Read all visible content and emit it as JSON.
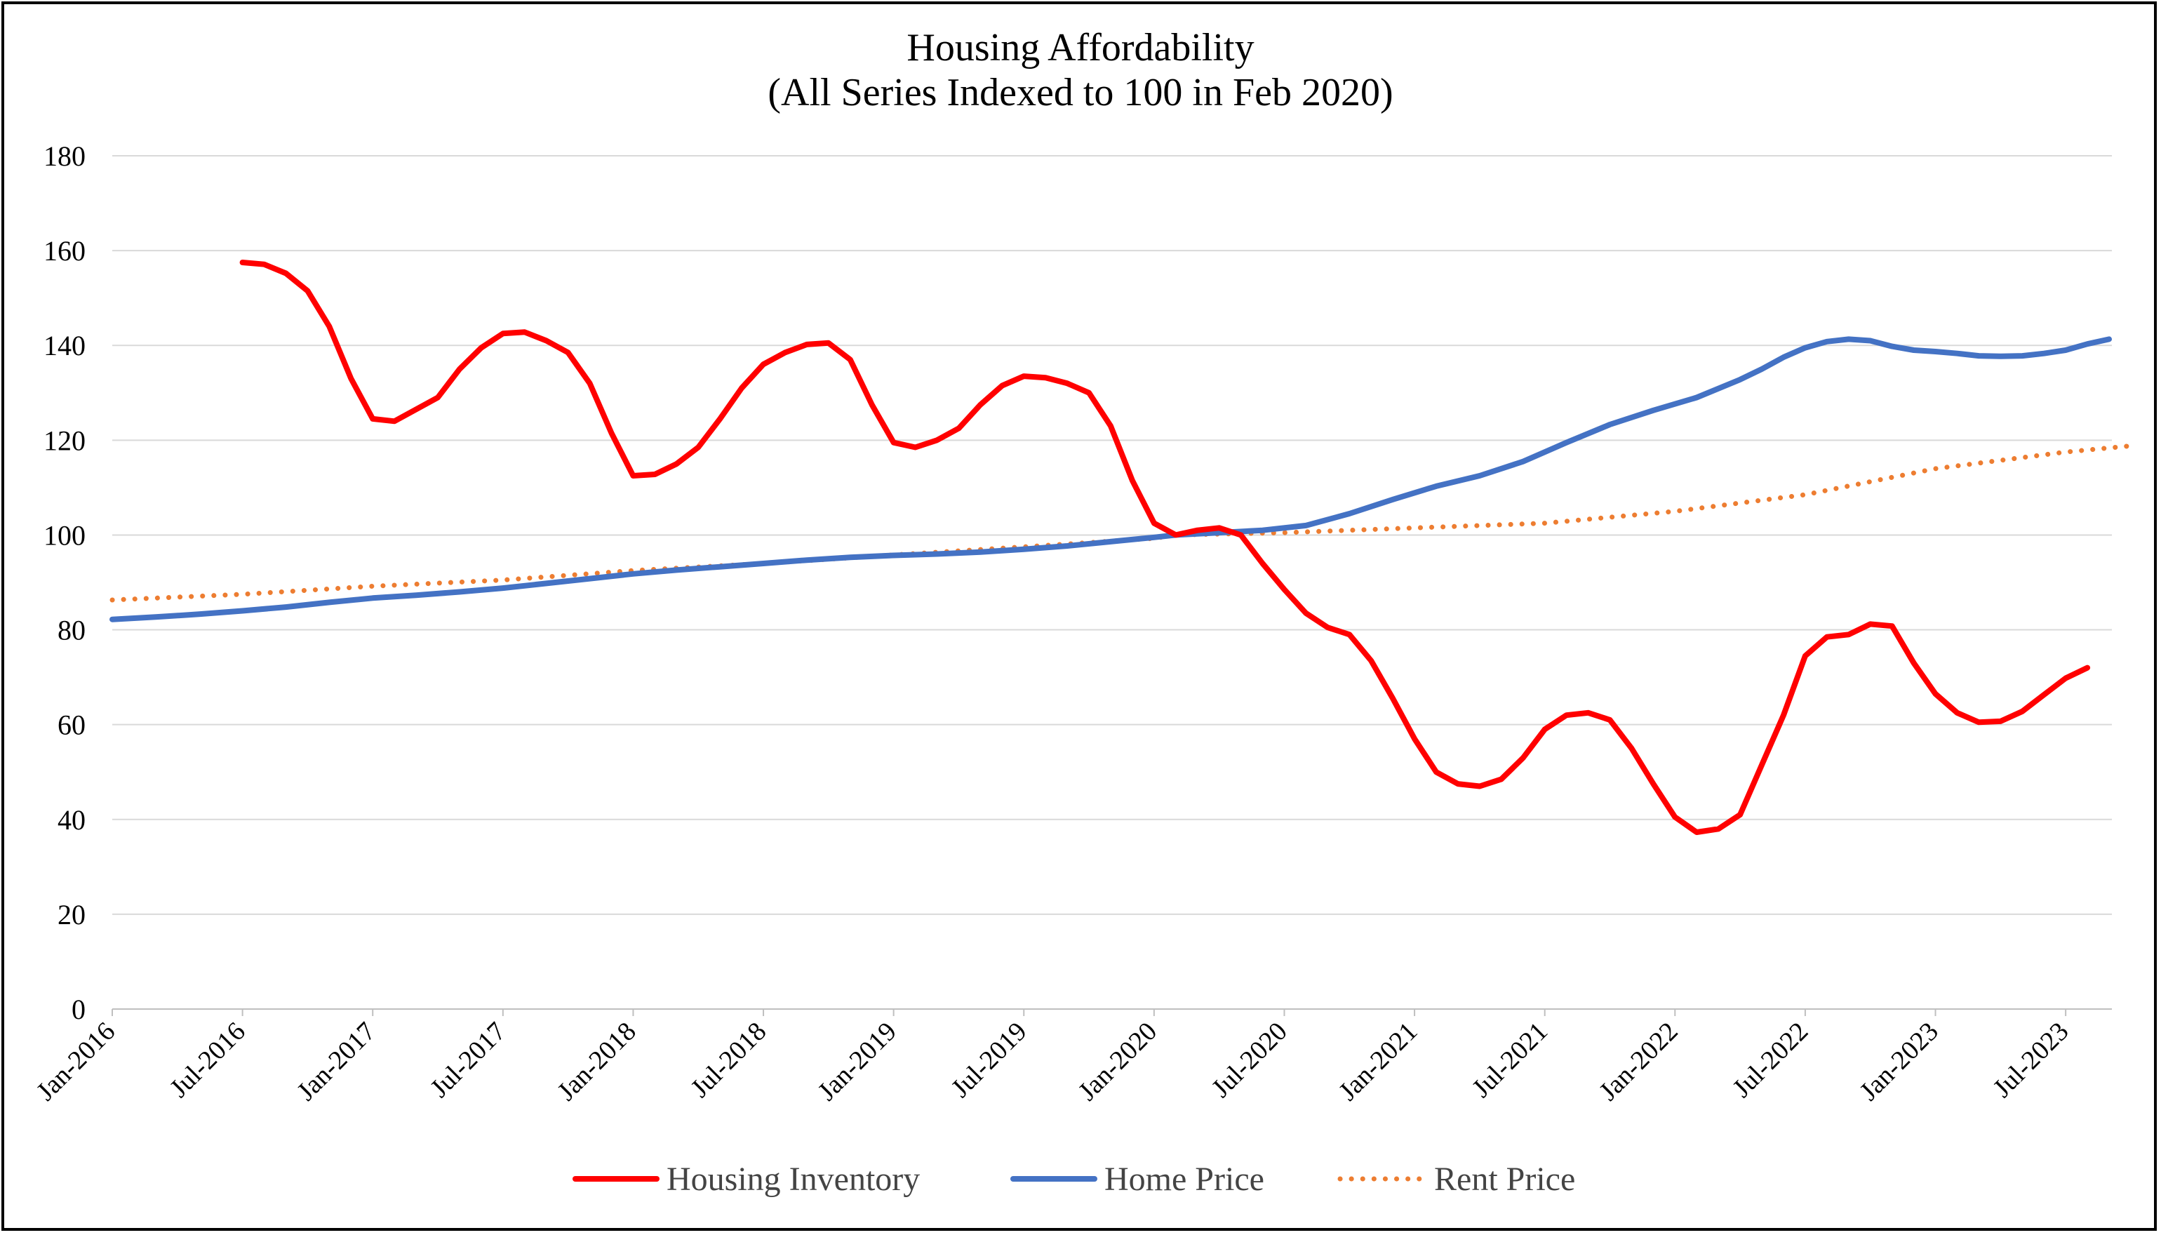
{
  "chart_data": {
    "type": "line",
    "title": "Housing Affordability",
    "subtitle": "(All Series Indexed to 100 in Feb 2020)",
    "xlabel": "",
    "ylabel": "",
    "ylim": [
      0,
      180
    ],
    "yticks": [
      0,
      20,
      40,
      60,
      80,
      100,
      120,
      140,
      160,
      180
    ],
    "x_range": [
      "2016-01",
      "2023-09"
    ],
    "xticks": [
      "Jan-2016",
      "Jul-2016",
      "Jan-2017",
      "Jul-2017",
      "Jan-2018",
      "Jul-2018",
      "Jan-2019",
      "Jul-2019",
      "Jan-2020",
      "Jul-2020",
      "Jan-2021",
      "Jul-2021",
      "Jan-2022",
      "Jul-2022",
      "Jan-2023",
      "Jul-2023"
    ],
    "grid": "horizontal",
    "legend_position": "bottom",
    "series": [
      {
        "name": "Housing Inventory",
        "color": "#ff0000",
        "style": "solid",
        "points": [
          [
            "2016-07",
            157.5
          ],
          [
            "2016-08",
            157.1
          ],
          [
            "2016-09",
            155.2
          ],
          [
            "2016-10",
            151.5
          ],
          [
            "2016-11",
            144.0
          ],
          [
            "2016-12",
            133.0
          ],
          [
            "2017-01",
            124.5
          ],
          [
            "2017-02",
            124.0
          ],
          [
            "2017-03",
            126.5
          ],
          [
            "2017-04",
            129.0
          ],
          [
            "2017-05",
            135.0
          ],
          [
            "2017-06",
            139.5
          ],
          [
            "2017-07",
            142.5
          ],
          [
            "2017-08",
            142.8
          ],
          [
            "2017-09",
            141.0
          ],
          [
            "2017-10",
            138.5
          ],
          [
            "2017-11",
            132.0
          ],
          [
            "2017-12",
            121.5
          ],
          [
            "2018-01",
            112.5
          ],
          [
            "2018-02",
            112.8
          ],
          [
            "2018-03",
            115.0
          ],
          [
            "2018-04",
            118.5
          ],
          [
            "2018-05",
            124.5
          ],
          [
            "2018-06",
            131.0
          ],
          [
            "2018-07",
            136.0
          ],
          [
            "2018-08",
            138.5
          ],
          [
            "2018-09",
            140.2
          ],
          [
            "2018-10",
            140.5
          ],
          [
            "2018-11",
            137.0
          ],
          [
            "2018-12",
            127.5
          ],
          [
            "2019-01",
            119.5
          ],
          [
            "2019-02",
            118.5
          ],
          [
            "2019-03",
            120.0
          ],
          [
            "2019-04",
            122.5
          ],
          [
            "2019-05",
            127.5
          ],
          [
            "2019-06",
            131.5
          ],
          [
            "2019-07",
            133.5
          ],
          [
            "2019-08",
            133.2
          ],
          [
            "2019-09",
            132.0
          ],
          [
            "2019-10",
            130.0
          ],
          [
            "2019-11",
            123.0
          ],
          [
            "2019-12",
            111.5
          ],
          [
            "2020-01",
            102.5
          ],
          [
            "2020-02",
            100.0
          ],
          [
            "2020-03",
            101.0
          ],
          [
            "2020-04",
            101.5
          ],
          [
            "2020-05",
            100.0
          ],
          [
            "2020-06",
            94.0
          ],
          [
            "2020-07",
            88.5
          ],
          [
            "2020-08",
            83.5
          ],
          [
            "2020-09",
            80.5
          ],
          [
            "2020-10",
            79.0
          ],
          [
            "2020-11",
            73.5
          ],
          [
            "2020-12",
            65.5
          ],
          [
            "2021-01",
            57.0
          ],
          [
            "2021-02",
            50.0
          ],
          [
            "2021-03",
            47.5
          ],
          [
            "2021-04",
            47.0
          ],
          [
            "2021-05",
            48.5
          ],
          [
            "2021-06",
            53.0
          ],
          [
            "2021-07",
            59.0
          ],
          [
            "2021-08",
            62.0
          ],
          [
            "2021-09",
            62.5
          ],
          [
            "2021-10",
            61.0
          ],
          [
            "2021-11",
            55.0
          ],
          [
            "2021-12",
            47.5
          ],
          [
            "2022-01",
            40.5
          ],
          [
            "2022-02",
            37.3
          ],
          [
            "2022-03",
            38.0
          ],
          [
            "2022-04",
            41.0
          ],
          [
            "2022-05",
            51.5
          ],
          [
            "2022-06",
            62.0
          ],
          [
            "2022-07",
            74.5
          ],
          [
            "2022-08",
            78.5
          ],
          [
            "2022-09",
            79.0
          ],
          [
            "2022-10",
            81.2
          ],
          [
            "2022-11",
            80.8
          ],
          [
            "2022-12",
            73.0
          ],
          [
            "2023-01",
            66.5
          ],
          [
            "2023-02",
            62.5
          ],
          [
            "2023-03",
            60.5
          ],
          [
            "2023-04",
            60.7
          ],
          [
            "2023-05",
            62.8
          ],
          [
            "2023-06",
            66.3
          ],
          [
            "2023-07",
            69.8
          ],
          [
            "2023-08",
            72.0
          ]
        ]
      },
      {
        "name": "Home Price",
        "color": "#4472c4",
        "style": "solid",
        "points": [
          [
            "2016-01",
            82.2
          ],
          [
            "2016-03",
            82.7
          ],
          [
            "2016-05",
            83.3
          ],
          [
            "2016-07",
            84.0
          ],
          [
            "2016-09",
            84.8
          ],
          [
            "2016-11",
            85.8
          ],
          [
            "2017-01",
            86.7
          ],
          [
            "2017-03",
            87.3
          ],
          [
            "2017-05",
            88.0
          ],
          [
            "2017-07",
            88.8
          ],
          [
            "2017-09",
            89.8
          ],
          [
            "2017-11",
            90.8
          ],
          [
            "2018-01",
            91.8
          ],
          [
            "2018-03",
            92.6
          ],
          [
            "2018-05",
            93.3
          ],
          [
            "2018-07",
            94.0
          ],
          [
            "2018-09",
            94.7
          ],
          [
            "2018-11",
            95.3
          ],
          [
            "2019-01",
            95.7
          ],
          [
            "2019-03",
            96.0
          ],
          [
            "2019-05",
            96.4
          ],
          [
            "2019-07",
            97.0
          ],
          [
            "2019-09",
            97.7
          ],
          [
            "2019-11",
            98.6
          ],
          [
            "2020-01",
            99.5
          ],
          [
            "2020-02",
            100.0
          ],
          [
            "2020-04",
            100.5
          ],
          [
            "2020-06",
            101.0
          ],
          [
            "2020-08",
            102.0
          ],
          [
            "2020-10",
            104.5
          ],
          [
            "2020-12",
            107.5
          ],
          [
            "2021-02",
            110.3
          ],
          [
            "2021-04",
            112.5
          ],
          [
            "2021-06",
            115.5
          ],
          [
            "2021-08",
            119.5
          ],
          [
            "2021-10",
            123.3
          ],
          [
            "2021-12",
            126.3
          ],
          [
            "2022-02",
            129.0
          ],
          [
            "2022-04",
            132.8
          ],
          [
            "2022-05",
            135.0
          ],
          [
            "2022-06",
            137.5
          ],
          [
            "2022-07",
            139.5
          ],
          [
            "2022-08",
            140.8
          ],
          [
            "2022-09",
            141.3
          ],
          [
            "2022-10",
            141.0
          ],
          [
            "2022-11",
            139.8
          ],
          [
            "2022-12",
            139.0
          ],
          [
            "2023-01",
            138.7
          ],
          [
            "2023-02",
            138.3
          ],
          [
            "2023-03",
            137.8
          ],
          [
            "2023-04",
            137.7
          ],
          [
            "2023-05",
            137.8
          ],
          [
            "2023-06",
            138.3
          ],
          [
            "2023-07",
            139.0
          ],
          [
            "2023-08",
            140.3
          ],
          [
            "2023-09",
            141.3
          ]
        ]
      },
      {
        "name": "Rent Price",
        "color": "#ed7d31",
        "style": "dotted",
        "points": [
          [
            "2016-01",
            86.3
          ],
          [
            "2016-07",
            87.5
          ],
          [
            "2017-01",
            89.2
          ],
          [
            "2017-07",
            90.5
          ],
          [
            "2018-01",
            92.5
          ],
          [
            "2018-07",
            94.0
          ],
          [
            "2019-01",
            95.8
          ],
          [
            "2019-07",
            97.5
          ],
          [
            "2020-01",
            99.3
          ],
          [
            "2020-02",
            100.0
          ],
          [
            "2020-07",
            100.5
          ],
          [
            "2021-01",
            101.5
          ],
          [
            "2021-07",
            102.5
          ],
          [
            "2022-01",
            105.0
          ],
          [
            "2022-07",
            108.5
          ],
          [
            "2023-01",
            114.0
          ],
          [
            "2023-07",
            117.5
          ],
          [
            "2023-10",
            118.8
          ]
        ]
      }
    ]
  }
}
